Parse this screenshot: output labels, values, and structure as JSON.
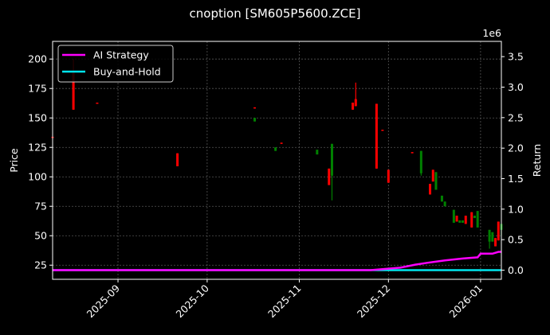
{
  "title": "cnoption [SM605P5600.ZCE]",
  "chart_data": {
    "type": "candlestick+line",
    "title": "cnoption [SM605P5600.ZCE]",
    "xlabel": "",
    "ylabel": "Price",
    "y2label": "Return",
    "y2_offset_label": "1e6",
    "ylim": [
      13,
      215
    ],
    "y2lim": [
      -0.15,
      3.75
    ],
    "x_range": [
      "2025-08-10",
      "2026-01-08"
    ],
    "x_ticks": [
      "2025-09",
      "2025-10",
      "2025-11",
      "2025-12",
      "2026-01"
    ],
    "y_ticks": [
      25,
      50,
      75,
      100,
      125,
      150,
      175,
      200
    ],
    "y2_ticks": [
      "0.0",
      "0.5",
      "1.0",
      "1.5",
      "2.0",
      "2.5",
      "3.0",
      "3.5"
    ],
    "grid": true,
    "legend": {
      "position": "upper left",
      "entries": [
        "AI Strategy",
        "Buy-and-Hold"
      ]
    },
    "colors": {
      "up": "#008000",
      "down": "#ff0000",
      "ai_strategy": "#ff00ff",
      "buy_and_hold": "#00e5ee",
      "background": "#000000"
    },
    "candles": [
      {
        "date": "2025-08-10",
        "open": 134,
        "high": 134,
        "low": 133,
        "close": 133
      },
      {
        "date": "2025-08-17",
        "open": 190,
        "high": 200,
        "low": 157,
        "close": 157
      },
      {
        "date": "2025-08-25",
        "open": 163,
        "high": 163,
        "low": 162,
        "close": 162
      },
      {
        "date": "2025-09-21",
        "open": 120,
        "high": 120,
        "low": 109,
        "close": 109
      },
      {
        "date": "2025-10-17",
        "open": 159,
        "high": 159,
        "low": 158,
        "close": 158
      },
      {
        "date": "2025-10-17",
        "open": 147,
        "high": 150,
        "low": 147,
        "close": 150
      },
      {
        "date": "2025-10-24",
        "open": 122,
        "high": 125,
        "low": 122,
        "close": 125
      },
      {
        "date": "2025-10-26",
        "open": 129,
        "high": 129,
        "low": 128,
        "close": 128
      },
      {
        "date": "2025-11-07",
        "open": 119,
        "high": 123,
        "low": 119,
        "close": 123
      },
      {
        "date": "2025-11-11",
        "open": 107,
        "high": 107,
        "low": 93,
        "close": 93
      },
      {
        "date": "2025-11-12",
        "open": 101,
        "high": 128,
        "low": 80,
        "close": 128
      },
      {
        "date": "2025-11-19",
        "open": 163,
        "high": 163,
        "low": 157,
        "close": 157
      },
      {
        "date": "2025-11-20",
        "open": 166,
        "high": 180,
        "low": 160,
        "close": 160
      },
      {
        "date": "2025-11-27",
        "open": 162,
        "high": 162,
        "low": 107,
        "close": 107
      },
      {
        "date": "2025-11-29",
        "open": 140,
        "high": 140,
        "low": 139,
        "close": 139
      },
      {
        "date": "2025-12-01",
        "open": 106,
        "high": 106,
        "low": 95,
        "close": 95
      },
      {
        "date": "2025-12-09",
        "open": 121,
        "high": 121,
        "low": 120,
        "close": 120
      },
      {
        "date": "2025-12-12",
        "open": 103,
        "high": 122,
        "low": 101,
        "close": 122
      },
      {
        "date": "2025-12-15",
        "open": 94,
        "high": 94,
        "low": 85,
        "close": 85
      },
      {
        "date": "2025-12-16",
        "open": 106,
        "high": 106,
        "low": 96,
        "close": 96
      },
      {
        "date": "2025-12-17",
        "open": 89,
        "high": 104,
        "low": 89,
        "close": 104
      },
      {
        "date": "2025-12-19",
        "open": 79,
        "high": 84,
        "low": 79,
        "close": 84
      },
      {
        "date": "2025-12-20",
        "open": 75,
        "high": 79,
        "low": 75,
        "close": 79
      },
      {
        "date": "2025-12-23",
        "open": 61,
        "high": 72,
        "low": 61,
        "close": 72
      },
      {
        "date": "2025-12-24",
        "open": 67,
        "high": 67,
        "low": 62,
        "close": 62
      },
      {
        "date": "2025-12-25",
        "open": 61,
        "high": 63,
        "low": 61,
        "close": 63
      },
      {
        "date": "2025-12-26",
        "open": 61,
        "high": 63,
        "low": 61,
        "close": 63
      },
      {
        "date": "2025-12-27",
        "open": 67,
        "high": 67,
        "low": 60,
        "close": 60
      },
      {
        "date": "2025-12-29",
        "open": 70,
        "high": 70,
        "low": 57,
        "close": 57
      },
      {
        "date": "2025-12-30",
        "open": 65,
        "high": 67,
        "low": 65,
        "close": 67
      },
      {
        "date": "2025-12-31",
        "open": 57,
        "high": 71,
        "low": 57,
        "close": 71
      },
      {
        "date": "2026-01-04",
        "open": 45,
        "high": 55,
        "low": 39,
        "close": 55
      },
      {
        "date": "2026-01-05",
        "open": 45,
        "high": 53,
        "low": 45,
        "close": 53
      },
      {
        "date": "2026-01-06",
        "open": 48,
        "high": 48,
        "low": 41,
        "close": 41
      },
      {
        "date": "2026-01-07",
        "open": 62,
        "high": 62,
        "low": 46,
        "close": 46
      },
      {
        "date": "2026-01-08",
        "open": 55,
        "high": 60,
        "low": 50,
        "close": 60
      }
    ],
    "series": [
      {
        "name": "AI Strategy",
        "color": "#ff00ff",
        "x": [
          "2025-08-10",
          "2025-11-25",
          "2025-12-05",
          "2025-12-10",
          "2025-12-14",
          "2025-12-20",
          "2025-12-26",
          "2025-12-31",
          "2026-01-01",
          "2026-01-05",
          "2026-01-07",
          "2026-01-08"
        ],
        "values": [
          0.0,
          0.0,
          0.04,
          0.09,
          0.12,
          0.16,
          0.19,
          0.21,
          0.27,
          0.27,
          0.3,
          0.3
        ]
      },
      {
        "name": "Buy-and-Hold",
        "color": "#00e5ee",
        "x": [
          "2025-08-10",
          "2026-01-08"
        ],
        "values": [
          0.0,
          0.0
        ]
      }
    ]
  }
}
